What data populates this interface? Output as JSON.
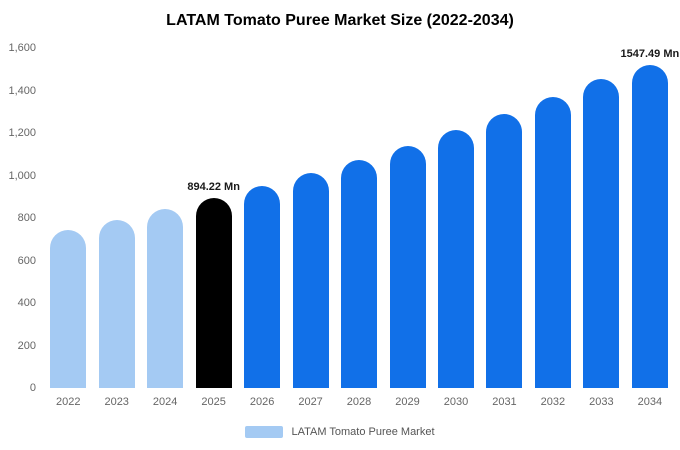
{
  "title": "LATAM Tomato Puree Market Size (2022-2034)",
  "colors": {
    "historical_bar": "#A4CAF3",
    "base_year_bar": "#000000",
    "forecast_bar": "#1170E8",
    "axis_text": "#666666",
    "annotation_text": "#1a1a1a"
  },
  "chart_data": {
    "type": "bar",
    "title": "LATAM Tomato Puree Market Size (2022-2034)",
    "xlabel": "",
    "ylabel": "",
    "grid": false,
    "categories": [
      "2022",
      "2023",
      "2024",
      "2025",
      "2026",
      "2027",
      "2028",
      "2029",
      "2030",
      "2031",
      "2032",
      "2033",
      "2034"
    ],
    "values": [
      745,
      791,
      841,
      894.22,
      950,
      1010,
      1073,
      1141,
      1212,
      1288,
      1369,
      1455,
      1547.49
    ],
    "bar_colors": [
      "#A4CAF3",
      "#A4CAF3",
      "#A4CAF3",
      "#000000",
      "#1170E8",
      "#1170E8",
      "#1170E8",
      "#1170E8",
      "#1170E8",
      "#1170E8",
      "#1170E8",
      "#1170E8",
      "#1170E8"
    ],
    "ylim": [
      0,
      1600
    ],
    "yticks": [
      0,
      200,
      400,
      600,
      800,
      1000,
      1200,
      1400,
      1600
    ],
    "ytick_labels": [
      "0",
      "200",
      "400",
      "600",
      "800",
      "1,000",
      "1,200",
      "1,400",
      "1,600"
    ],
    "annotations": [
      {
        "category": "2025",
        "text": "894.22 Mn"
      },
      {
        "category": "2034",
        "text": "1547.49 Mn"
      }
    ],
    "legend": {
      "position": "bottom",
      "entries": [
        {
          "label": "LATAM Tomato Puree Market",
          "color": "#A4CAF3"
        }
      ]
    }
  }
}
